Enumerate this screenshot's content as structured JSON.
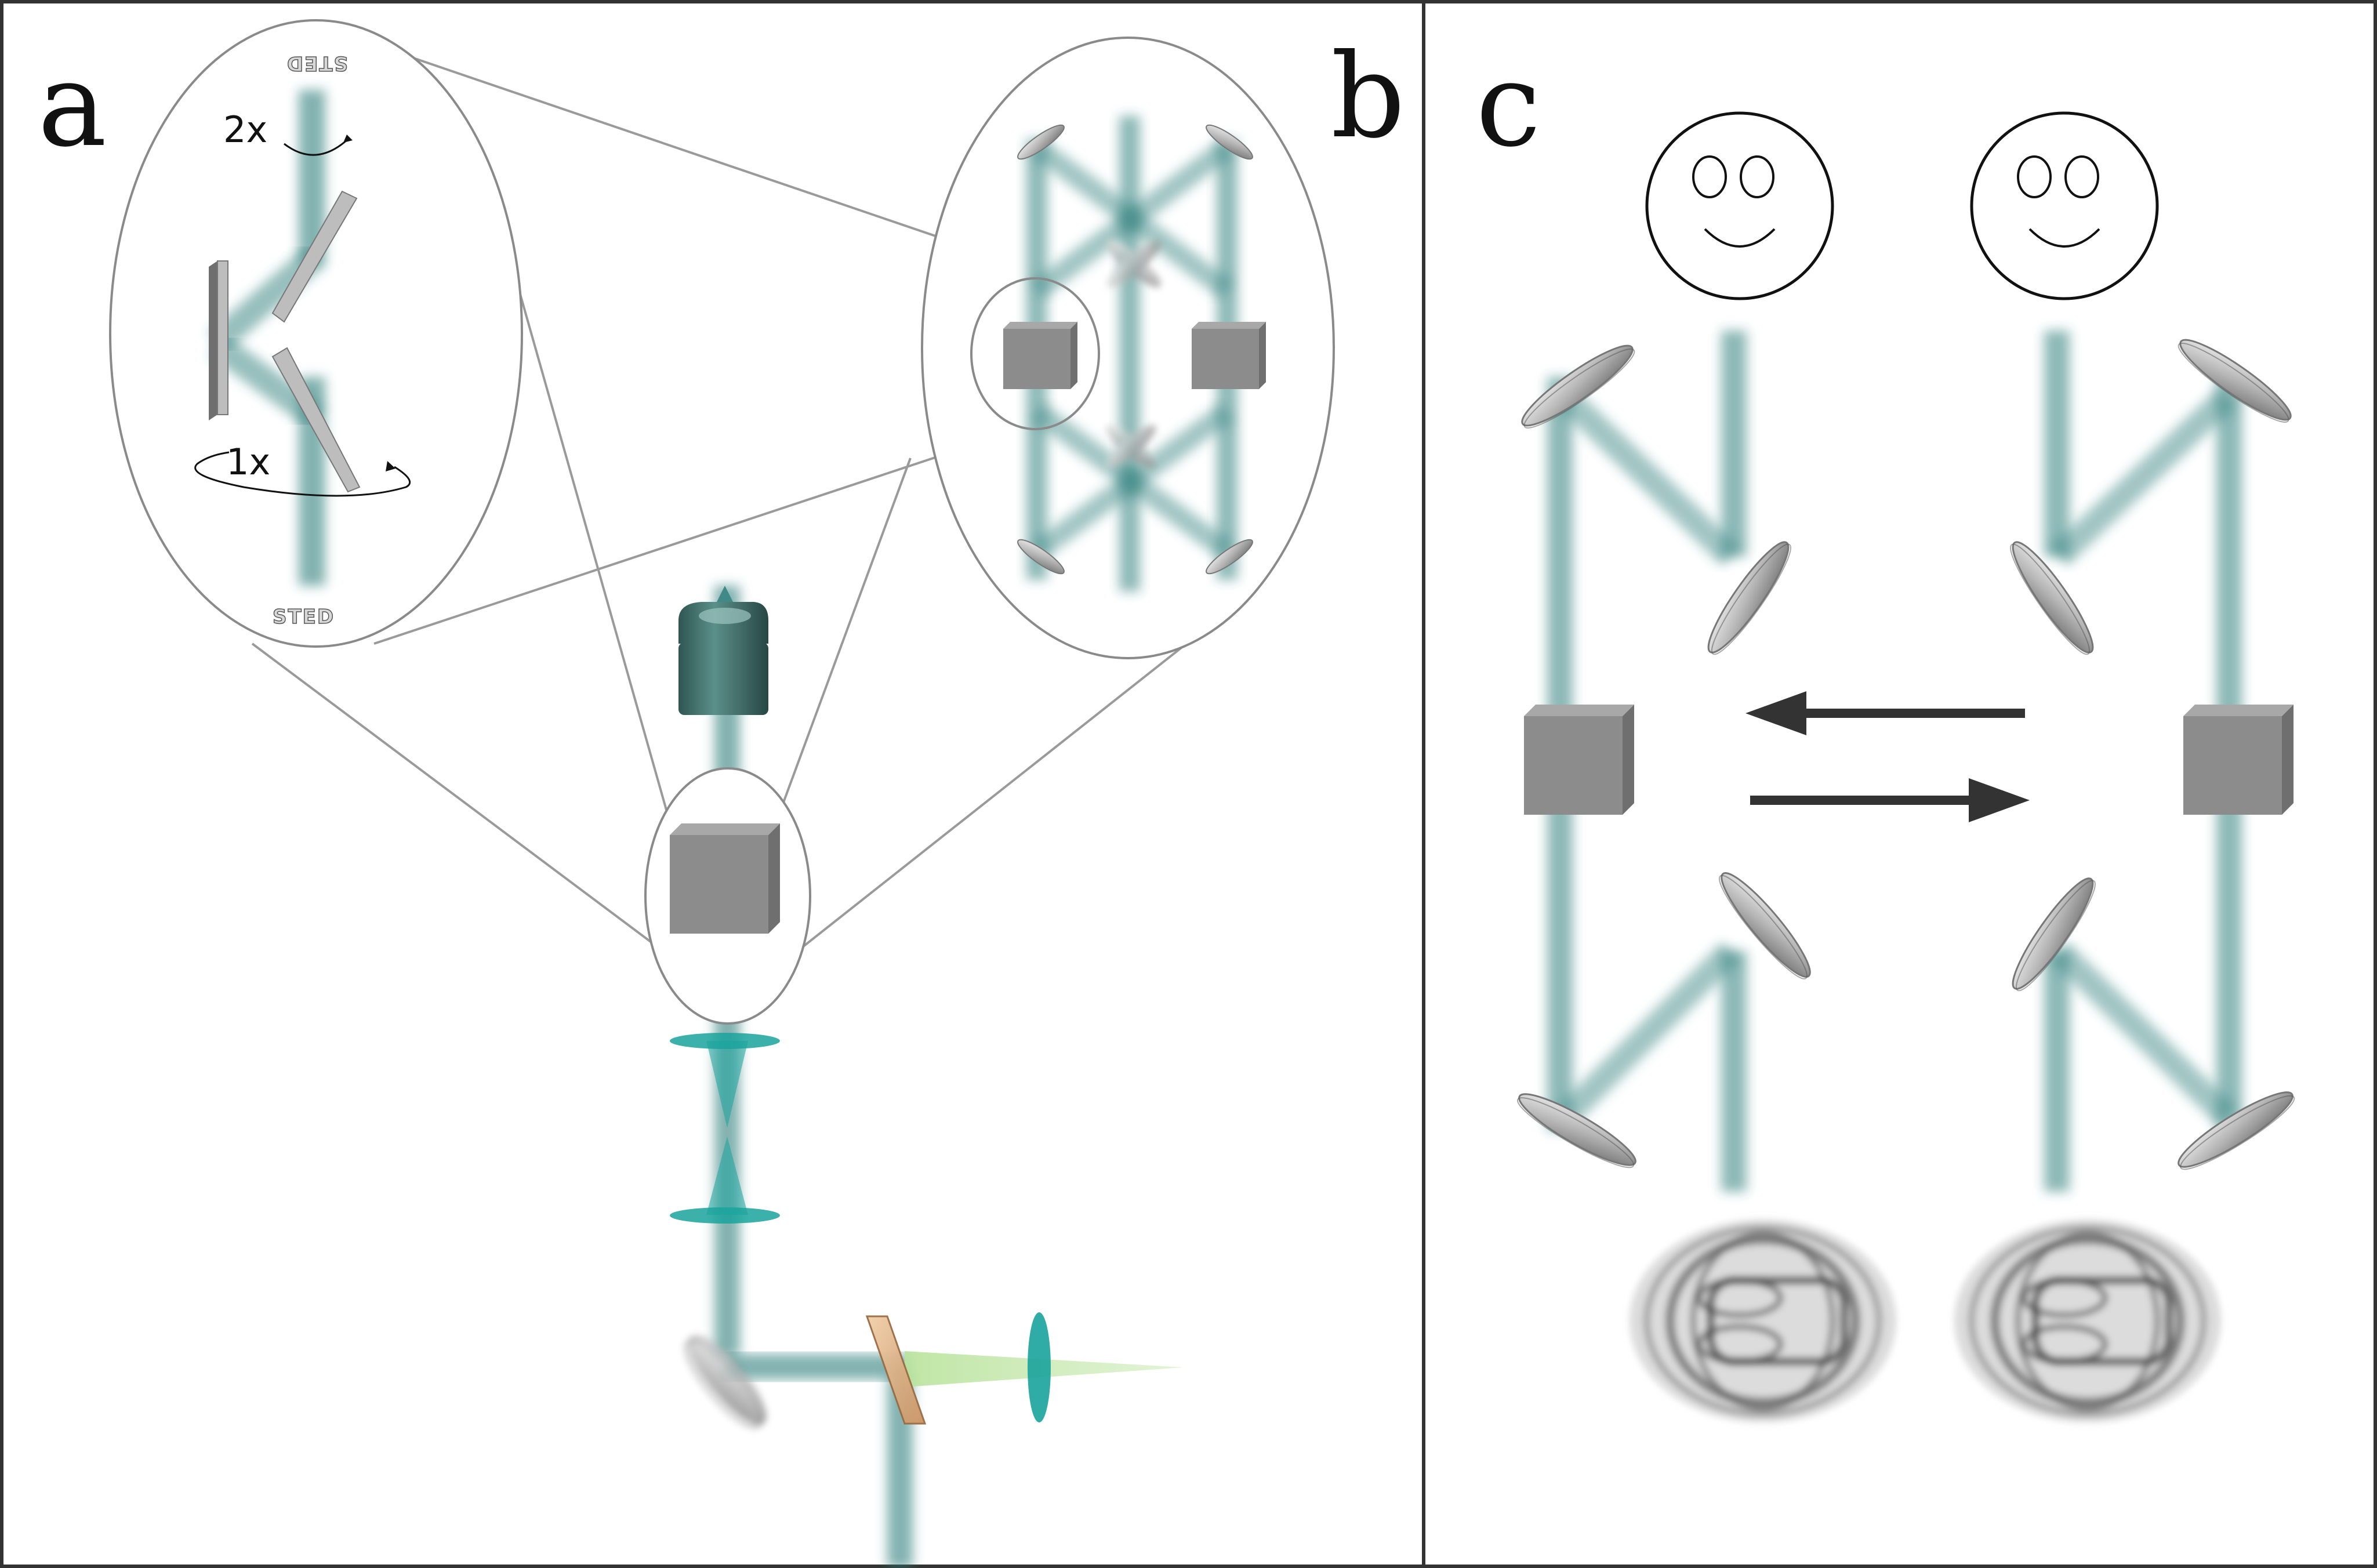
{
  "panels": {
    "a": {
      "letter": "a"
    },
    "b": {
      "letter": "b"
    },
    "c": {
      "letter": "c"
    }
  },
  "inset_a": {
    "top_label": "STED",
    "bottom_label": "STED",
    "rotation_top": "2x",
    "rotation_bottom": "1x"
  },
  "colors": {
    "beam_sted": "#2f7f7c",
    "beam_excitation": "#a8dc8a",
    "optic_gray": "#8c8c8c",
    "objective": "#3f6f6b",
    "lens": "#1aa39c",
    "dichroic": "#d9a77a",
    "frame": "#333333",
    "zoom_lines": "#9a9a9a",
    "arrows": "#333333"
  },
  "icons": {
    "smiley": "smiley-face-icon",
    "arrow_left": "arrow-left-icon",
    "arrow_right": "arrow-right-icon",
    "psf_pattern": "donut-psf-icon"
  }
}
